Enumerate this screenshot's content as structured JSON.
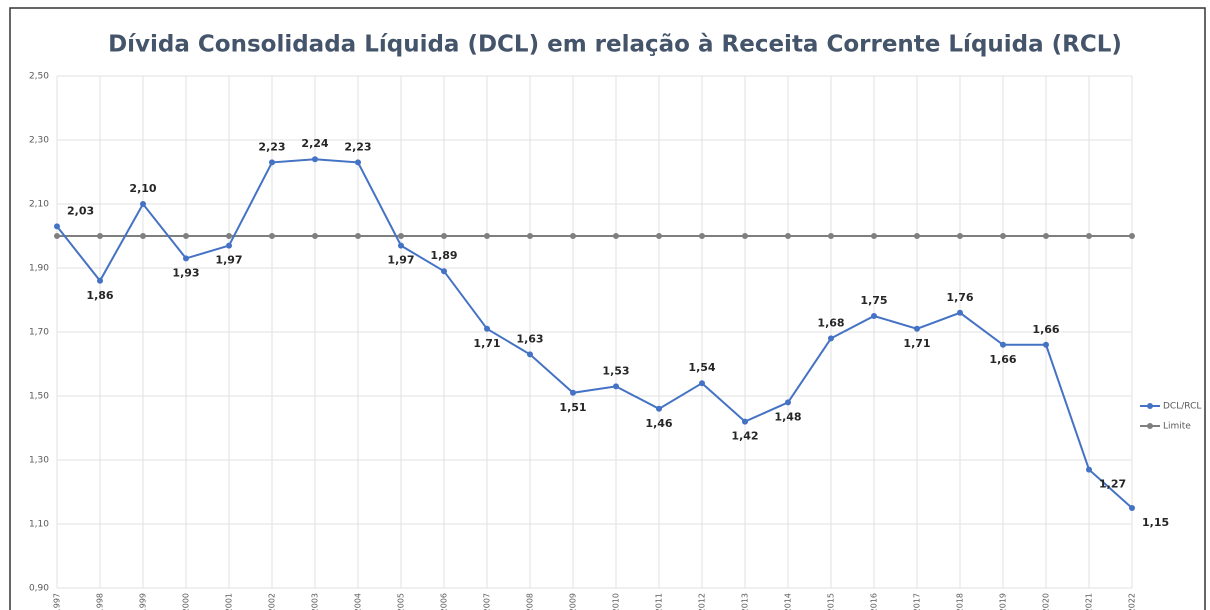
{
  "chart_data": {
    "type": "line",
    "title": "Dívida Consolidada Líquida (DCL) em relação à Receita Corrente Líquida (RCL)",
    "categories": [
      "1997",
      "1998",
      "1999",
      "2000",
      "2001",
      "2002",
      "2003",
      "2004",
      "2005",
      "2006",
      "2007",
      "2008",
      "2009",
      "2010",
      "2011",
      "2012",
      "2013",
      "2014",
      "2015",
      "2016",
      "2017",
      "2018",
      "2019",
      "2020",
      "2021",
      "2022"
    ],
    "series": [
      {
        "name": "DCL/RCL",
        "color": "#4472c4",
        "values": [
          2.03,
          1.86,
          2.1,
          1.93,
          1.97,
          2.23,
          2.24,
          2.23,
          1.97,
          1.89,
          1.71,
          1.63,
          1.51,
          1.53,
          1.46,
          1.54,
          1.42,
          1.48,
          1.68,
          1.75,
          1.71,
          1.76,
          1.66,
          1.66,
          1.27,
          1.15
        ],
        "value_labels": [
          "2,03",
          "1,86",
          "2,10",
          "1,93",
          "1,97",
          "2,23",
          "2,24",
          "2,23",
          "1,97",
          "1,89",
          "1,71",
          "1,63",
          "1,51",
          "1,53",
          "1,46",
          "1,54",
          "1,42",
          "1,48",
          "1,68",
          "1,75",
          "1,71",
          "1,76",
          "1,66",
          "1,66",
          "1,27",
          "1,15"
        ]
      },
      {
        "name": "Limite",
        "color": "#7f7f7f",
        "values": [
          2,
          2,
          2,
          2,
          2,
          2,
          2,
          2,
          2,
          2,
          2,
          2,
          2,
          2,
          2,
          2,
          2,
          2,
          2,
          2,
          2,
          2,
          2,
          2,
          2,
          2
        ]
      }
    ],
    "ylim": [
      0.9,
      2.5
    ],
    "yticks": [
      {
        "value": 0.9,
        "label": "0,90"
      },
      {
        "value": 1.1,
        "label": "1,10"
      },
      {
        "value": 1.3,
        "label": "1,30"
      },
      {
        "value": 1.5,
        "label": "1,50"
      },
      {
        "value": 1.7,
        "label": "1,70"
      },
      {
        "value": 1.9,
        "label": "1,90"
      },
      {
        "value": 2.1,
        "label": "2,10"
      },
      {
        "value": 2.3,
        "label": "2,30"
      },
      {
        "value": 2.5,
        "label": "2,50"
      }
    ],
    "grid": true,
    "legend": "right"
  }
}
